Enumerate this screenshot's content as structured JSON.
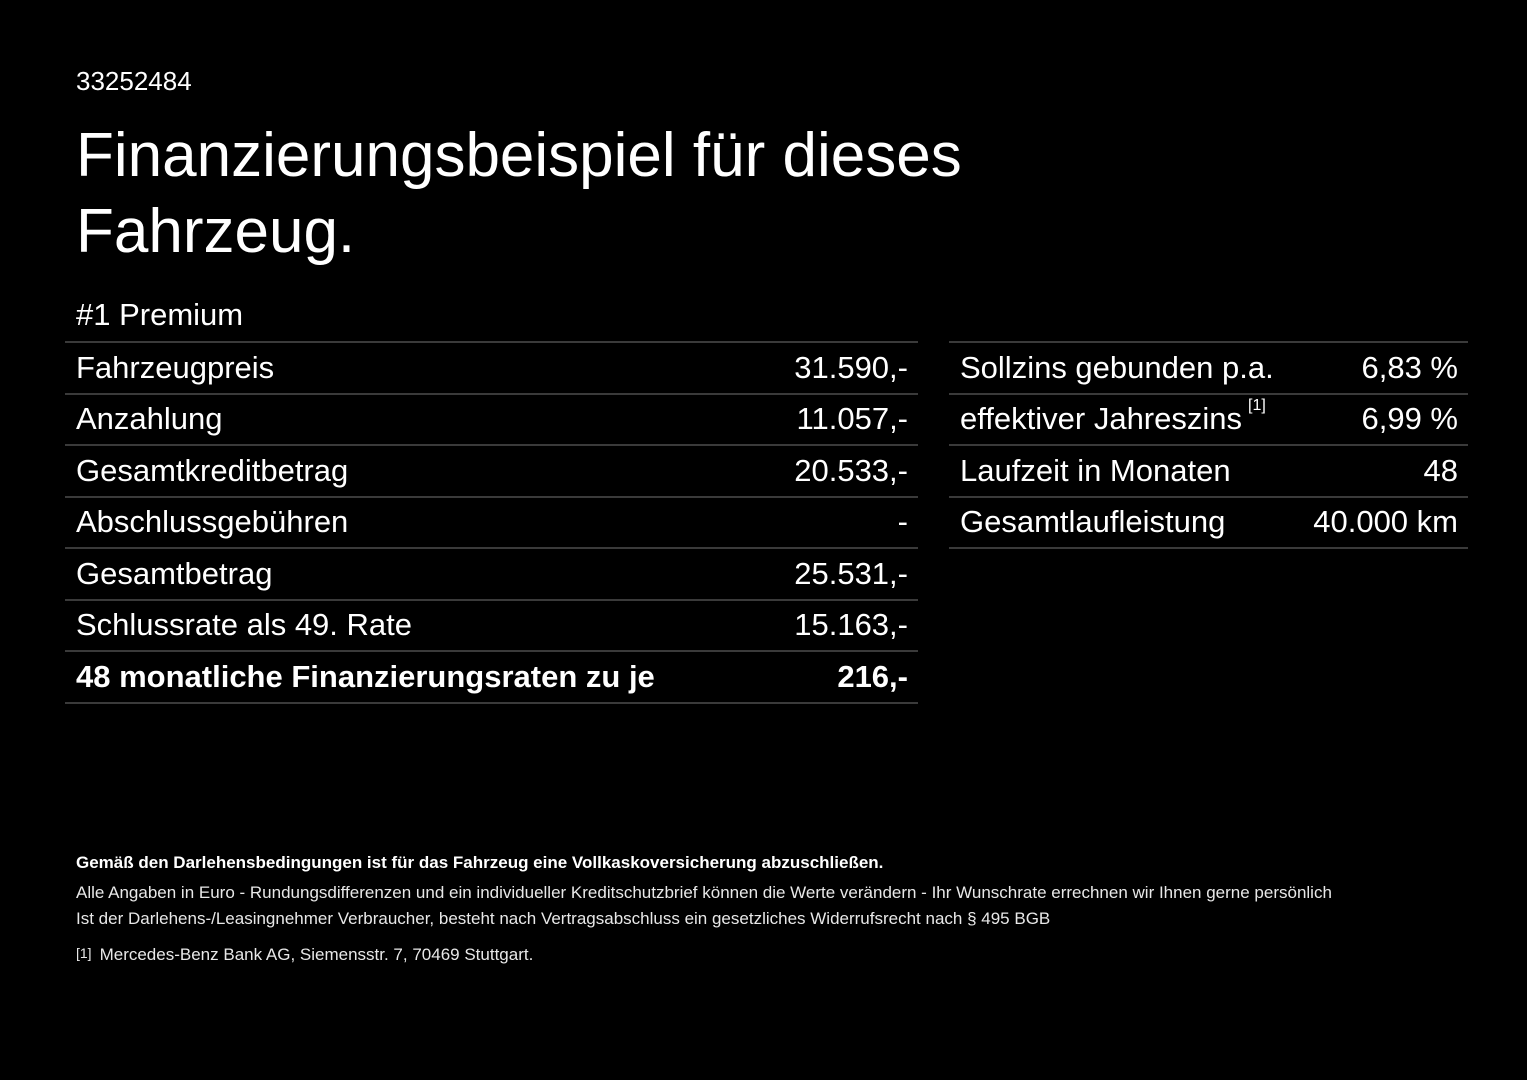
{
  "id": "33252484",
  "title": "Finanzierungsbeispiel für dieses Fahrzeug.",
  "subtitle": "#1 Premium",
  "left_rows": [
    {
      "label": "Fahrzeugpreis",
      "value": "31.590,-"
    },
    {
      "label": "Anzahlung",
      "value": "11.057,-"
    },
    {
      "label": "Gesamtkreditbetrag",
      "value": "20.533,-"
    },
    {
      "label": "Abschlussgebühren",
      "value": "-"
    },
    {
      "label": "Gesamtbetrag",
      "value": "25.531,-"
    },
    {
      "label": "Schlussrate als 49. Rate",
      "value": "15.163,-"
    },
    {
      "label": "48 monatliche Finanzierungsraten zu je",
      "value": "216,-"
    }
  ],
  "right_rows": [
    {
      "label": "Sollzins gebunden p.a.",
      "value": "6,83 %"
    },
    {
      "label": "effektiver Jahreszins",
      "sup": "[1]",
      "value": "6,99 %"
    },
    {
      "label": "Laufzeit in Monaten",
      "value": "48"
    },
    {
      "label": "Gesamtlaufleistung",
      "value": "40.000 km"
    }
  ],
  "footer": {
    "bold": "Gemäß den Darlehensbedingungen ist für das Fahrzeug eine Vollkaskoversicherung abzuschließen.",
    "line1": "Alle Angaben in Euro - Rundungsdifferenzen und ein individueller Kreditschutzbrief können die Werte verändern - Ihr Wunschrate errechnen wir Ihnen gerne persönlich",
    "line2": "Ist der Darlehens-/Leasingnehmer Verbraucher, besteht nach Vertragsabschluss ein gesetzliches Widerrufsrecht nach § 495 BGB",
    "note_mark": "[1]",
    "note": "Mercedes-Benz Bank AG, Siemensstr. 7, 70469 Stuttgart."
  }
}
